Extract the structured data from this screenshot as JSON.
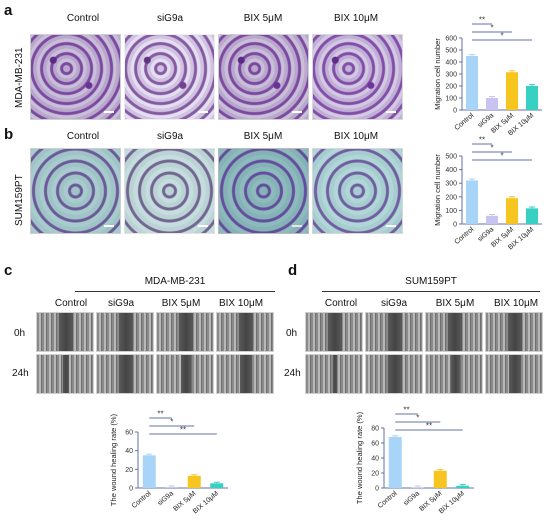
{
  "panels": {
    "a": {
      "letter": "a",
      "row_label": "MDA-MB-231"
    },
    "b": {
      "letter": "b",
      "row_label": "SUM159PT"
    },
    "c": {
      "letter": "c",
      "cell_line": "MDA-MB-231"
    },
    "d": {
      "letter": "d",
      "cell_line": "SUM159PT"
    }
  },
  "columns": [
    "Control",
    "siG9a",
    "BIX 5μM",
    "BIX 10μM"
  ],
  "timepoints": [
    "0h",
    "24h"
  ],
  "colors": {
    "Control": "#a8d4f7",
    "siG9a": "#c9c4ef",
    "BIX 5μM": "#f6c51f",
    "BIX 10μM": "#37d1c3",
    "axis": "#6270a8",
    "sig": "#6270a8"
  },
  "chart_data": [
    {
      "type": "bar",
      "panel": "a",
      "categories": [
        "Control",
        "siG9a",
        "BIX 5μM",
        "BIX 10μM"
      ],
      "values": [
        450,
        100,
        315,
        200
      ],
      "ylabel": "Migration cell number",
      "ylim": [
        0,
        600
      ],
      "yticks": [
        "0",
        "100",
        "200",
        "300",
        "400",
        "500",
        "600"
      ],
      "significance": [
        "**",
        "*",
        "*"
      ]
    },
    {
      "type": "bar",
      "panel": "b",
      "categories": [
        "Control",
        "siG9a",
        "BIX 5μM",
        "BIX 10μM"
      ],
      "values": [
        320,
        60,
        190,
        115
      ],
      "ylabel": "Migration cell number",
      "ylim": [
        0,
        500
      ],
      "yticks": [
        "0",
        "100",
        "200",
        "300",
        "400",
        "500"
      ],
      "significance": [
        "**",
        "*",
        "*"
      ]
    },
    {
      "type": "bar",
      "panel": "c",
      "categories": [
        "Control",
        "siG9a",
        "BIX 5μM",
        "BIX 10μM"
      ],
      "values": [
        35,
        1,
        13,
        5
      ],
      "ylabel": "The wound healing rate (%)",
      "ylim": [
        0,
        60
      ],
      "yticks": [
        "0",
        "20",
        "40",
        "60"
      ],
      "significance": [
        "**",
        "*",
        "**"
      ]
    },
    {
      "type": "bar",
      "panel": "d",
      "categories": [
        "Control",
        "siG9a",
        "BIX 5μM",
        "BIX 10μM"
      ],
      "values": [
        68,
        1,
        23,
        3
      ],
      "ylabel": "The wound healing rate (%)",
      "ylim": [
        0,
        80
      ],
      "yticks": [
        "0",
        "20",
        "40",
        "60",
        "80"
      ],
      "significance": [
        "**",
        "*",
        "**"
      ]
    }
  ]
}
